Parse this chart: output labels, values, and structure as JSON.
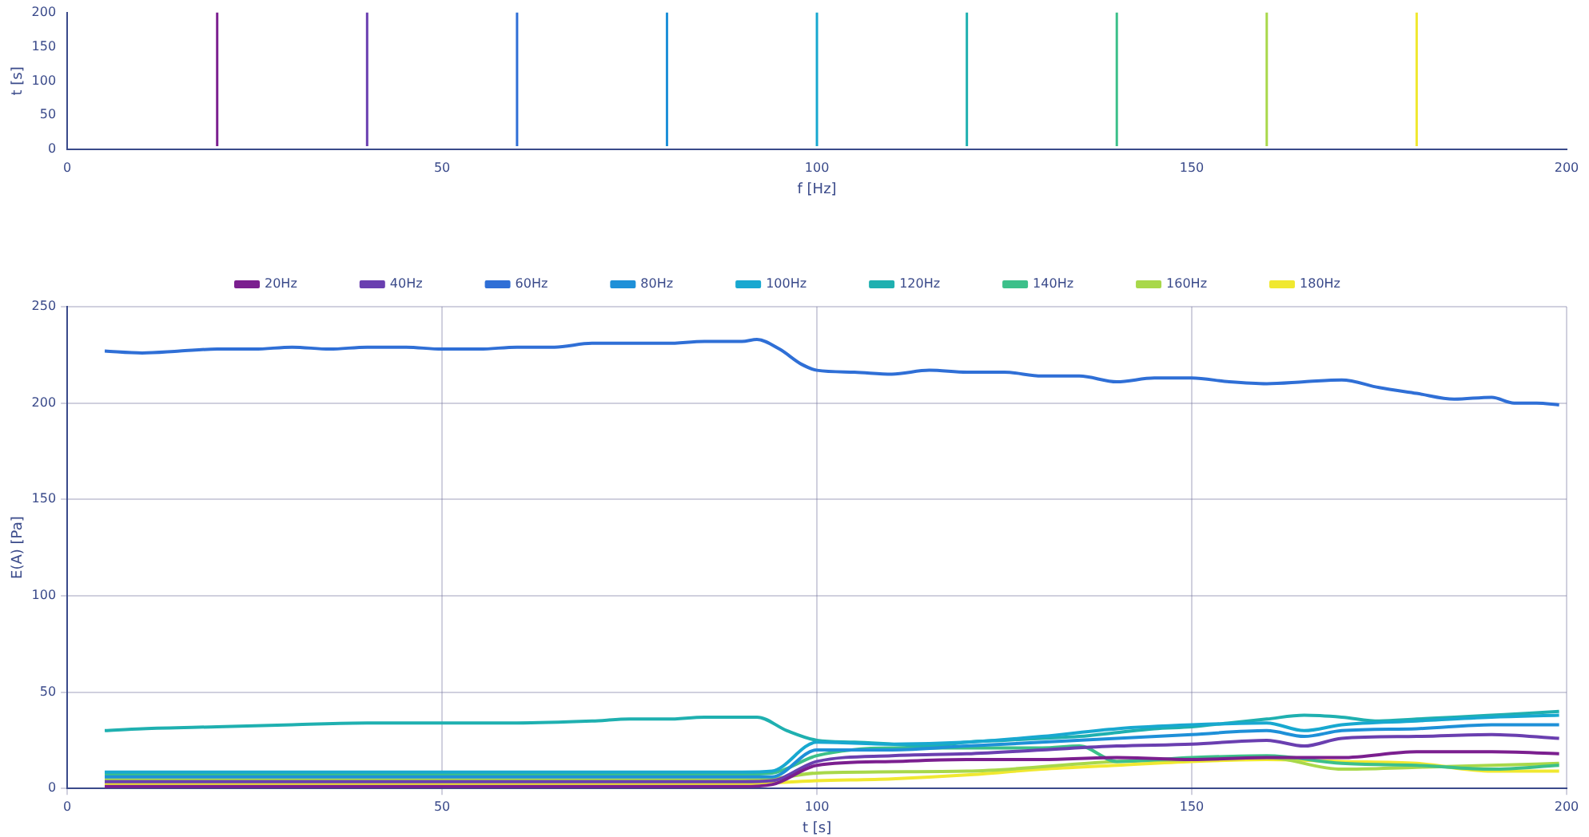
{
  "chart_data": [
    {
      "type": "line",
      "xlabel": "f [Hz]",
      "ylabel": "t [s]",
      "xlim": [
        0,
        200
      ],
      "ylim": [
        0,
        200
      ],
      "xticks": [
        0,
        50,
        100,
        150,
        200
      ],
      "yticks": [
        0,
        50,
        100,
        150,
        200
      ],
      "grid": false,
      "legend": false,
      "series": [
        {
          "color": "#7b1f8f",
          "x": [
            20,
            20
          ],
          "values": [
            5,
            200
          ]
        },
        {
          "color": "#6a3fb0",
          "x": [
            40,
            40
          ],
          "values": [
            5,
            200
          ]
        },
        {
          "color": "#2f6fd6",
          "x": [
            60,
            60
          ],
          "values": [
            5,
            200
          ]
        },
        {
          "color": "#1e90d8",
          "x": [
            80,
            80
          ],
          "values": [
            5,
            200
          ]
        },
        {
          "color": "#18a8d0",
          "x": [
            100,
            100
          ],
          "values": [
            5,
            200
          ]
        },
        {
          "color": "#1fb0b0",
          "x": [
            120,
            120
          ],
          "values": [
            5,
            200
          ]
        },
        {
          "color": "#3cc08a",
          "x": [
            140,
            140
          ],
          "values": [
            5,
            200
          ]
        },
        {
          "color": "#a8d84a",
          "x": [
            160,
            160
          ],
          "values": [
            5,
            200
          ]
        },
        {
          "color": "#f0e830",
          "x": [
            180,
            180
          ],
          "values": [
            5,
            200
          ]
        }
      ]
    },
    {
      "type": "line",
      "xlabel": "t [s]",
      "ylabel": "E(A) [Pa]",
      "xlim": [
        0,
        200
      ],
      "ylim": [
        0,
        250
      ],
      "xticks": [
        0,
        50,
        100,
        150,
        200
      ],
      "yticks": [
        0,
        50,
        100,
        150,
        200,
        250
      ],
      "grid": true,
      "legend": "top",
      "series": [
        {
          "name": "20Hz",
          "color": "#7b1f8f",
          "x": [
            5,
            30,
            60,
            90,
            94,
            100,
            110,
            120,
            130,
            140,
            150,
            160,
            170,
            180,
            190,
            199
          ],
          "values": [
            1,
            1,
            1,
            1,
            2,
            12,
            14,
            15,
            15,
            16,
            15,
            16,
            16,
            19,
            19,
            18
          ]
        },
        {
          "name": "40Hz",
          "color": "#6a3fb0",
          "x": [
            5,
            30,
            60,
            90,
            94,
            100,
            110,
            120,
            130,
            140,
            150,
            160,
            165,
            170,
            180,
            190,
            199
          ],
          "values": [
            3.5,
            3.5,
            3.5,
            3.5,
            4,
            14,
            17,
            18,
            20,
            22,
            23,
            25,
            22,
            26,
            27,
            28,
            26
          ]
        },
        {
          "name": "60Hz",
          "color": "#2f6fd6",
          "x": [
            5,
            10,
            15,
            20,
            25,
            30,
            35,
            40,
            45,
            50,
            55,
            60,
            65,
            70,
            75,
            80,
            85,
            90,
            92,
            95,
            98,
            100,
            105,
            110,
            115,
            120,
            125,
            130,
            135,
            140,
            145,
            150,
            155,
            160,
            165,
            170,
            175,
            180,
            185,
            190,
            193,
            196,
            199
          ],
          "values": [
            227,
            226,
            227,
            228,
            228,
            229,
            228,
            229,
            229,
            228,
            228,
            229,
            229,
            231,
            231,
            231,
            232,
            232,
            233,
            228,
            220,
            217,
            216,
            215,
            217,
            216,
            216,
            214,
            214,
            211,
            213,
            213,
            211,
            210,
            211,
            212,
            208,
            205,
            202,
            203,
            200,
            200,
            199
          ]
        },
        {
          "name": "80Hz",
          "color": "#1e90d8",
          "x": [
            5,
            30,
            60,
            90,
            94,
            100,
            110,
            120,
            130,
            140,
            150,
            160,
            165,
            170,
            180,
            190,
            199
          ],
          "values": [
            6,
            6,
            6,
            6,
            6,
            20,
            20,
            22,
            24,
            26,
            28,
            30,
            27,
            30,
            31,
            33,
            33
          ]
        },
        {
          "name": "100Hz",
          "color": "#18a8d0",
          "x": [
            5,
            30,
            60,
            90,
            94,
            100,
            110,
            120,
            130,
            140,
            150,
            160,
            165,
            170,
            180,
            190,
            199
          ],
          "values": [
            8.5,
            8.5,
            8.5,
            8.5,
            9,
            24,
            23,
            24,
            27,
            31,
            33,
            34,
            30,
            33,
            35,
            37,
            38
          ]
        },
        {
          "name": "120Hz",
          "color": "#1fb0b0",
          "x": [
            5,
            10,
            20,
            30,
            40,
            50,
            60,
            70,
            75,
            80,
            85,
            92,
            96,
            100,
            105,
            110,
            115,
            120,
            125,
            130,
            135,
            140,
            145,
            150,
            155,
            160,
            165,
            170,
            175,
            180,
            185,
            190,
            195,
            199
          ],
          "values": [
            30,
            31,
            32,
            33,
            34,
            34,
            34,
            35,
            36,
            36,
            37,
            37,
            30,
            25,
            24,
            23,
            22,
            24,
            25,
            26,
            27,
            29,
            31,
            32,
            34,
            36,
            38,
            37,
            35,
            36,
            37,
            38,
            39,
            40
          ]
        },
        {
          "name": "140Hz",
          "color": "#3cc08a",
          "x": [
            5,
            30,
            60,
            90,
            94,
            100,
            110,
            120,
            130,
            135,
            140,
            150,
            160,
            170,
            180,
            190,
            199
          ],
          "values": [
            7.5,
            7.5,
            7.5,
            7.5,
            8,
            17,
            21,
            21,
            21,
            22,
            14,
            16,
            17,
            13,
            12,
            10,
            12
          ]
        },
        {
          "name": "160Hz",
          "color": "#a8d84a",
          "x": [
            5,
            30,
            60,
            90,
            94,
            100,
            120,
            140,
            150,
            160,
            170,
            180,
            190,
            199
          ],
          "values": [
            4.5,
            4.5,
            4.5,
            4.5,
            5,
            8,
            9,
            14,
            15,
            16,
            10,
            11,
            12,
            13
          ]
        },
        {
          "name": "180Hz",
          "color": "#f0e830",
          "x": [
            5,
            30,
            60,
            90,
            100,
            110,
            120,
            130,
            140,
            150,
            160,
            170,
            180,
            190,
            199
          ],
          "values": [
            2.5,
            2.5,
            2.5,
            2.5,
            4,
            5,
            7,
            10,
            12,
            14,
            15,
            14,
            13,
            9,
            9
          ]
        }
      ]
    }
  ]
}
